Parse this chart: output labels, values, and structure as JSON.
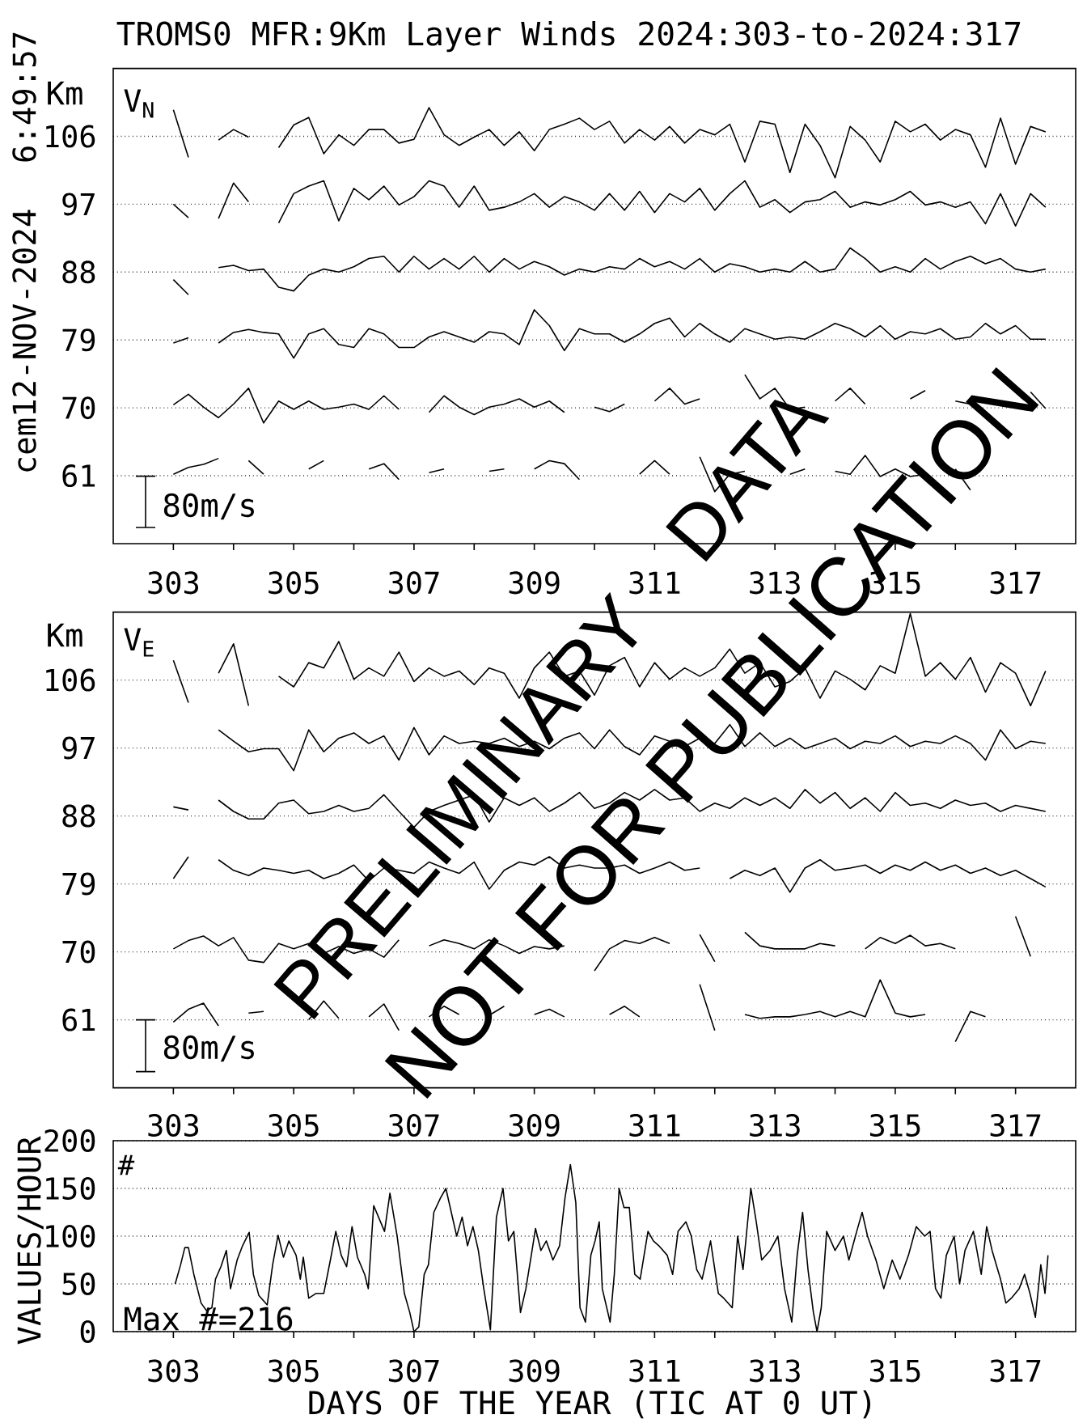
{
  "chart_data": [
    {
      "type": "line",
      "title": "TROMS0 MFR:9Km Layer Winds 2024:303-to-2024:317",
      "ylabel": "Km",
      "annotations": [
        "V$_{N}$",
        "80m/s",
        "cem12-NOV-2024",
        "6:49:57",
        "PRELIMINARY DATA",
        "NOT FOR PUBLICATION"
      ],
      "x": [
        303,
        303.25,
        303.5,
        303.75,
        304,
        304.25,
        304.5,
        304.75,
        305,
        305.25,
        305.5,
        305.75,
        306,
        306.25,
        306.5,
        306.75,
        307,
        307.25,
        307.5,
        307.75,
        308,
        308.25,
        308.5,
        308.75,
        309,
        309.25,
        309.5,
        309.75,
        310,
        310.25,
        310.5,
        310.75,
        311,
        311.25,
        311.5,
        311.75,
        312,
        312.25,
        312.5,
        312.75,
        313,
        313.25,
        313.5,
        313.75,
        314,
        314.25,
        314.5,
        314.75,
        315,
        315.25,
        315.5,
        315.75,
        316,
        316.25,
        316.5,
        316.75,
        317,
        317.25,
        317.5
      ],
      "series": [
        {
          "color": "#000000",
          "values": [
            109.5,
            103.2,
            null,
            105.5,
            106.9,
            105.9,
            null,
            104.5,
            107.5,
            108.5,
            103.7,
            106.2,
            104.8,
            106.9,
            106.9,
            105.1,
            105.6,
            109.8,
            106.2,
            104.8,
            105.9,
            106.9,
            104.8,
            106.6,
            104.1,
            106.9,
            107.6,
            108.4,
            106.9,
            108,
            105.1,
            106.9,
            105.5,
            107.3,
            105.1,
            106.9,
            106.2,
            107.6,
            102.6,
            108,
            107.6,
            101.2,
            107.6,
            104.8,
            100.5,
            107.3,
            105.5,
            102.6,
            108,
            106.6,
            107.6,
            105.5,
            106.9,
            106.2,
            101.9,
            108.4,
            102.3,
            107.3,
            106.6
          ]
        },
        {
          "color": "#000000",
          "values": [
            97,
            95.2,
            null,
            95.1,
            99.8,
            97.3,
            null,
            94.5,
            98.4,
            99.4,
            100.1,
            94.8,
            99.1,
            97.6,
            99.4,
            96.9,
            98,
            100.1,
            99.4,
            96.6,
            99.4,
            96.2,
            96.6,
            97.3,
            98.4,
            96.6,
            98,
            97.3,
            96.2,
            98.4,
            96.2,
            98.7,
            95.9,
            98.4,
            97.3,
            99.1,
            96.2,
            98.4,
            100.1,
            96.6,
            97.6,
            95.9,
            97.3,
            97.6,
            98.7,
            96.6,
            97.3,
            96.9,
            97.6,
            98.7,
            96.9,
            97.3,
            96.6,
            97.3,
            94.4,
            98.4,
            94.1,
            98.4,
            96.6
          ]
        },
        {
          "color": "#000000",
          "values": [
            87,
            85,
            null,
            88.6,
            88.9,
            88.2,
            88.4,
            86,
            85.5,
            87.6,
            88.4,
            88,
            88.7,
            89.8,
            90.1,
            88,
            90.1,
            88.4,
            89.8,
            88.4,
            90.1,
            88,
            89.8,
            88.4,
            89.4,
            88.7,
            87.6,
            88.4,
            88,
            88.7,
            88.4,
            89.8,
            88.7,
            89.4,
            88.4,
            89.8,
            88,
            89.1,
            88.7,
            88,
            88.4,
            88,
            89.4,
            88,
            88.4,
            91.2,
            89.8,
            88,
            88.7,
            88,
            89.8,
            88.4,
            89.4,
            90.1,
            89.1,
            89.8,
            88.4,
            88,
            88.4
          ]
        },
        {
          "color": "#000000",
          "values": [
            78.6,
            79.3,
            null,
            78.6,
            80,
            80.4,
            80,
            79.8,
            76.6,
            79.8,
            80.5,
            78.4,
            78,
            80.5,
            79.8,
            78,
            78,
            79.4,
            80.1,
            79.4,
            78.7,
            80.1,
            79.8,
            78.4,
            83,
            80.9,
            77.6,
            80.5,
            79.8,
            79.8,
            78.7,
            79.8,
            81.2,
            81.9,
            79.4,
            81.2,
            79.8,
            78.7,
            80.5,
            79.8,
            79.1,
            79.4,
            79.1,
            80.1,
            81.2,
            80.5,
            79.4,
            80.9,
            79.1,
            80.1,
            79.8,
            80.5,
            79.1,
            79.4,
            81.2,
            79.8,
            80.9,
            79.1,
            79.1
          ]
        },
        {
          "color": "#000000",
          "values": [
            70.4,
            71.8,
            70.1,
            68.7,
            70.5,
            72.6,
            68,
            70.9,
            69.8,
            70.9,
            69.8,
            70.1,
            70.5,
            69.8,
            71.6,
            69.8,
            null,
            69.4,
            71.6,
            70.1,
            69.1,
            70.1,
            70.5,
            71.2,
            70.1,
            70.9,
            69.4,
            null,
            70.1,
            69.5,
            70.5,
            null,
            70.9,
            72.6,
            70.5,
            71.2,
            null,
            null,
            74.4,
            71.2,
            72.6,
            69.8,
            70.1,
            null,
            70.9,
            72.6,
            70.5,
            null,
            null,
            71.2,
            72.3,
            null,
            70.9,
            70.5,
            null,
            null,
            null,
            72.1,
            69.9
          ]
        },
        {
          "color": "#000000",
          "values": [
            61.2,
            62.1,
            62.5,
            63.3,
            null,
            63,
            61.2,
            null,
            null,
            61.9,
            63,
            null,
            null,
            61.9,
            62.6,
            60.5,
            null,
            61.4,
            61.9,
            null,
            null,
            61.6,
            61.9,
            null,
            61.9,
            63,
            62.6,
            60.5,
            null,
            null,
            null,
            61.2,
            63,
            61.2,
            null,
            63.5,
            58.9,
            61.2,
            61.6,
            null,
            null,
            61.2,
            61.9,
            null,
            61.6,
            61.2,
            63.7,
            60.9,
            61.9,
            60.9,
            61.2,
            null,
            61.9,
            59.1,
            null,
            null,
            null,
            null,
            null
          ]
        }
      ],
      "xlim": [
        302,
        318
      ],
      "ylim": [
        52,
        115
      ],
      "xticks": [
        303,
        {
          "value": 304,
          "label": null
        },
        305,
        {
          "value": 306,
          "label": null
        },
        307,
        {
          "value": 308,
          "label": null
        },
        309,
        {
          "value": 310,
          "label": null
        },
        311,
        {
          "value": 312,
          "label": null
        },
        313,
        {
          "value": 314,
          "label": null
        },
        315,
        {
          "value": 316,
          "label": null
        },
        317
      ],
      "yticks": [
        61,
        70,
        79,
        88,
        97,
        106
      ],
      "grid": "y"
    },
    {
      "type": "line",
      "ylabel": "Km",
      "annotations": [
        "V$_{E}$",
        "80m/s"
      ],
      "x": [
        303,
        303.25,
        303.5,
        303.75,
        304,
        304.25,
        304.5,
        304.75,
        305,
        305.25,
        305.5,
        305.75,
        306,
        306.25,
        306.5,
        306.75,
        307,
        307.25,
        307.5,
        307.75,
        308,
        308.25,
        308.5,
        308.75,
        309,
        309.25,
        309.5,
        309.75,
        310,
        310.25,
        310.5,
        310.75,
        311,
        311.25,
        311.5,
        311.75,
        312,
        312.25,
        312.5,
        312.75,
        313,
        313.25,
        313.5,
        313.75,
        314,
        314.25,
        314.5,
        314.75,
        315,
        315.25,
        315.5,
        315.75,
        316,
        316.25,
        316.5,
        316.75,
        317,
        317.25,
        317.5
      ],
      "series": [
        {
          "color": "#000000",
          "values": [
            108.6,
            103,
            null,
            106.9,
            110.8,
            102.6,
            null,
            106.5,
            105.1,
            108.3,
            107.6,
            111.1,
            106.1,
            107.6,
            106.5,
            109.7,
            105.8,
            107.6,
            106.5,
            107.2,
            105.4,
            107.6,
            106.9,
            103.6,
            107.6,
            109.7,
            106.5,
            107.2,
            104,
            107.9,
            109,
            105.1,
            108.3,
            106.1,
            107.6,
            106.5,
            107.6,
            110.1,
            106.9,
            108.3,
            105.1,
            105.8,
            107.6,
            103.6,
            107.2,
            106.1,
            104.7,
            107.9,
            106.9,
            114.8,
            106.5,
            108.3,
            106.1,
            109,
            104.4,
            108.3,
            106.9,
            102.6,
            107.2
          ]
        },
        {
          "color": "#000000",
          "values": [
            null,
            null,
            null,
            99.4,
            97.9,
            96.5,
            96.9,
            96.9,
            94,
            99.4,
            96.5,
            98.3,
            99,
            97.6,
            98.6,
            95.4,
            99.7,
            96.1,
            98.6,
            97.6,
            97.9,
            97.6,
            98.3,
            97.2,
            97.9,
            96.9,
            98.3,
            99,
            96.9,
            99.4,
            97.2,
            96.1,
            98.6,
            97.9,
            97.2,
            98.3,
            97.6,
            100.1,
            97.2,
            99,
            97.2,
            98.3,
            96.9,
            97.6,
            98.3,
            96.9,
            97.9,
            97.6,
            98.6,
            97.2,
            97.9,
            97.6,
            98.6,
            97.6,
            95.4,
            99.4,
            96.9,
            97.9,
            97.6
          ]
        },
        {
          "color": "#000000",
          "values": [
            89.2,
            88.8,
            null,
            90.1,
            88.6,
            87.6,
            87.6,
            89.7,
            90.1,
            88.3,
            88.6,
            89.4,
            88.6,
            89,
            90.8,
            88.6,
            86.5,
            88.6,
            89.4,
            90.1,
            90.8,
            87.2,
            90.4,
            89.4,
            90.4,
            88.6,
            89.7,
            91.1,
            89,
            89.7,
            91.1,
            90.1,
            91.5,
            90.1,
            90.4,
            88.6,
            89.7,
            89,
            90.4,
            89.4,
            90.4,
            89,
            91.5,
            89.7,
            91.1,
            89,
            90.4,
            88.6,
            91.1,
            89.4,
            89.7,
            89,
            90.1,
            89.4,
            89.7,
            88.6,
            89.4,
            89,
            88.6
          ]
        },
        {
          "color": "#000000",
          "values": [
            79.7,
            82.6,
            null,
            82.2,
            80.8,
            80.1,
            81.1,
            80.8,
            80.4,
            80.8,
            79.7,
            80.4,
            81.5,
            79.4,
            81.1,
            80.8,
            80.4,
            81.9,
            81.1,
            80.4,
            81.9,
            78.3,
            80.8,
            81.9,
            81.5,
            82.6,
            81.1,
            81.5,
            81.1,
            81.1,
            81.5,
            80.4,
            81.1,
            81.9,
            80.8,
            81.1,
            null,
            79.7,
            80.8,
            80.1,
            81.1,
            77.9,
            81.1,
            82.2,
            80.8,
            81.1,
            81.5,
            80.4,
            81.5,
            80.8,
            81.9,
            80.8,
            81.5,
            80.4,
            81.1,
            80.1,
            80.8,
            79.7,
            78.6
          ]
        },
        {
          "color": "#000000",
          "values": [
            70.4,
            71.5,
            72.1,
            70.8,
            71.9,
            68.9,
            68.6,
            71.1,
            70.4,
            71.1,
            69.8,
            70.7,
            69.8,
            70.4,
            69.3,
            71.6,
            null,
            70.8,
            71.6,
            71.1,
            70.4,
            71.6,
            70.8,
            69.8,
            70.7,
            70.4,
            70.8,
            null,
            67.5,
            70.4,
            71.5,
            71.1,
            71.9,
            71.1,
            null,
            72.3,
            68.7,
            null,
            72.6,
            70.8,
            70.4,
            70.4,
            70.4,
            71.1,
            70.8,
            null,
            70.4,
            71.9,
            71.1,
            72.2,
            70.8,
            71.1,
            70.4,
            null,
            null,
            null,
            74.7,
            69.4,
            null
          ]
        },
        {
          "color": "#000000",
          "values": [
            60.7,
            62.4,
            63.2,
            60.2,
            null,
            61.9,
            62.1,
            null,
            null,
            61,
            63.5,
            61.2,
            null,
            61.4,
            63.1,
            59.6,
            null,
            61.4,
            62.8,
            61.7,
            null,
            61.6,
            62.8,
            null,
            61.7,
            62.4,
            61.4,
            null,
            null,
            61.7,
            62.8,
            61.4,
            null,
            null,
            null,
            65.7,
            59.6,
            null,
            61.7,
            61.2,
            61.4,
            61.4,
            61.7,
            62.1,
            61.4,
            62.1,
            61.4,
            66.3,
            61.9,
            61.4,
            61.7,
            null,
            58.1,
            62.1,
            61.4,
            null,
            null,
            null,
            null
          ]
        }
      ],
      "xlim": [
        302,
        318
      ],
      "ylim": [
        52,
        115
      ],
      "xticks": [
        303,
        {
          "value": 304,
          "label": null
        },
        305,
        {
          "value": 306,
          "label": null
        },
        307,
        {
          "value": 308,
          "label": null
        },
        309,
        {
          "value": 310,
          "label": null
        },
        311,
        {
          "value": 312,
          "label": null
        },
        313,
        {
          "value": 314,
          "label": null
        },
        315,
        {
          "value": 316,
          "label": null
        },
        317
      ],
      "yticks": [
        61,
        70,
        79,
        88,
        97,
        106
      ],
      "grid": "y"
    },
    {
      "type": "line",
      "ylabel": "VALUES/HOUR",
      "xlabel": "DAYS OF THE YEAR (TIC AT 0 UT)",
      "annotations": [
        "#",
        "Max #=216"
      ],
      "x": [
        303.03,
        303.12,
        303.19,
        303.25,
        303.34,
        303.46,
        303.55,
        303.64,
        303.7,
        303.79,
        303.88,
        303.95,
        304.06,
        304.15,
        304.26,
        304.33,
        304.42,
        304.56,
        304.65,
        304.74,
        304.83,
        304.92,
        305.04,
        305.11,
        305.16,
        305.25,
        305.37,
        305.5,
        305.61,
        305.7,
        305.79,
        305.88,
        305.97,
        306.06,
        306.18,
        306.24,
        306.33,
        306.41,
        306.51,
        306.6,
        306.72,
        306.84,
        306.93,
        307,
        307.08,
        307.17,
        307.24,
        307.33,
        307.44,
        307.53,
        307.62,
        307.71,
        307.8,
        307.89,
        307.98,
        308.07,
        308.16,
        308.27,
        308.37,
        308.48,
        308.57,
        308.66,
        308.77,
        308.86,
        308.95,
        309.02,
        309.11,
        309.2,
        309.31,
        309.42,
        309.51,
        309.6,
        309.69,
        309.76,
        309.85,
        309.94,
        310.01,
        310.08,
        310.13,
        310.26,
        310.33,
        310.41,
        310.49,
        310.58,
        310.67,
        310.76,
        310.89,
        310.98,
        311.07,
        311.21,
        311.3,
        311.39,
        311.52,
        311.61,
        311.7,
        311.79,
        311.93,
        312.06,
        312.15,
        312.29,
        312.38,
        312.47,
        312.6,
        312.69,
        312.78,
        312.92,
        313.05,
        313.16,
        313.28,
        313.37,
        313.46,
        313.55,
        313.64,
        313.7,
        313.77,
        313.86,
        314,
        314.14,
        314.23,
        314.36,
        314.45,
        314.54,
        314.68,
        314.81,
        314.95,
        315.08,
        315.22,
        315.35,
        315.49,
        315.58,
        315.67,
        315.76,
        315.85,
        315.98,
        316.07,
        316.16,
        316.3,
        316.43,
        316.52,
        316.61,
        316.75,
        316.84,
        316.93,
        317.06,
        317.15,
        317.24,
        317.33,
        317.42,
        317.49,
        317.54
      ],
      "values": [
        50,
        70,
        88,
        88,
        60,
        30,
        22,
        25,
        55,
        68,
        85,
        45,
        75,
        90,
        104,
        60,
        38,
        28,
        70,
        101,
        78,
        95,
        80,
        55,
        78,
        35,
        40,
        40,
        75,
        105,
        80,
        68,
        110,
        78,
        60,
        45,
        132,
        120,
        105,
        145,
        100,
        40,
        20,
        0,
        5,
        60,
        70,
        125,
        140,
        150,
        125,
        100,
        120,
        90,
        110,
        85,
        45,
        2,
        120,
        150,
        95,
        105,
        20,
        45,
        80,
        108,
        85,
        95,
        75,
        90,
        140,
        175,
        135,
        25,
        10,
        80,
        95,
        115,
        45,
        10,
        60,
        150,
        130,
        130,
        60,
        55,
        105,
        95,
        90,
        80,
        60,
        105,
        115,
        100,
        65,
        55,
        95,
        40,
        35,
        25,
        100,
        65,
        150,
        115,
        75,
        85,
        100,
        45,
        10,
        80,
        125,
        65,
        20,
        0,
        25,
        105,
        85,
        100,
        75,
        105,
        125,
        100,
        75,
        45,
        75,
        55,
        80,
        110,
        100,
        105,
        45,
        35,
        80,
        100,
        50,
        85,
        105,
        60,
        110,
        85,
        55,
        30,
        35,
        45,
        60,
        40,
        15,
        70,
        40,
        80
      ],
      "color": "#000000",
      "xlim": [
        302,
        318
      ],
      "ylim": [
        0,
        200
      ],
      "xticks": [
        303,
        {
          "value": 304,
          "label": null
        },
        305,
        {
          "value": 306,
          "label": null
        },
        307,
        {
          "value": 308,
          "label": null
        },
        309,
        {
          "value": 310,
          "label": null
        },
        311,
        {
          "value": 312,
          "label": null
        },
        313,
        {
          "value": 314,
          "label": null
        },
        315,
        {
          "value": 316,
          "label": null
        },
        317
      ],
      "yticks": [
        0,
        50,
        100,
        150,
        200
      ],
      "grid": "y"
    }
  ]
}
